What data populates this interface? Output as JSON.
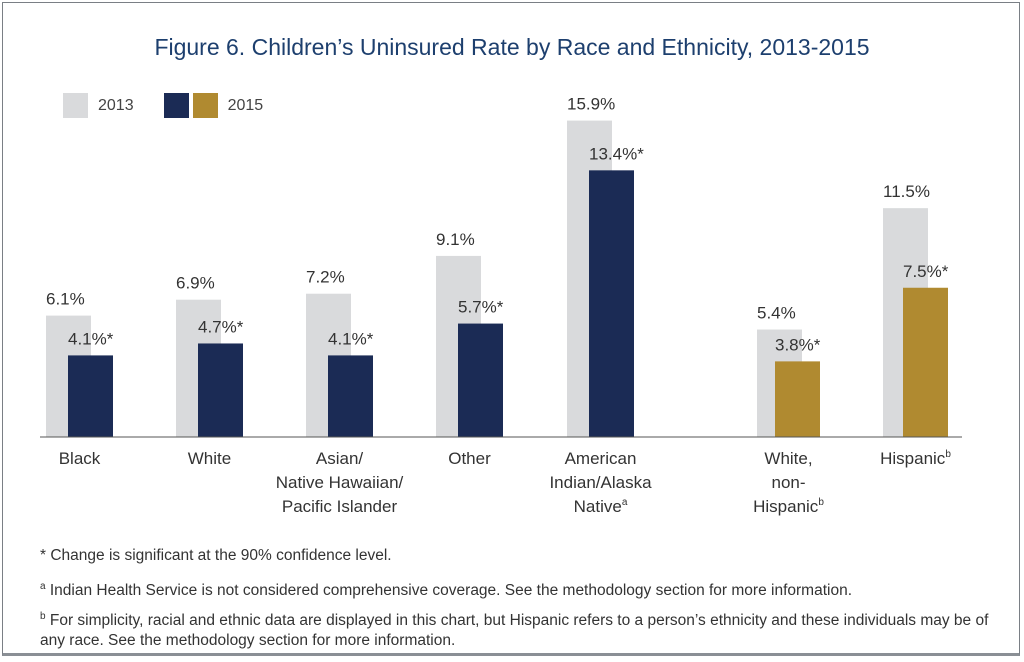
{
  "chart_data": {
    "type": "bar",
    "title": "Figure 6. Children’s Uninsured Rate by Race and Ethnicity, 2013-2015",
    "categories": [
      {
        "label": [
          "Black"
        ],
        "sup": ""
      },
      {
        "label": [
          "White"
        ],
        "sup": ""
      },
      {
        "label": [
          "Asian/",
          "Native Hawaiian/",
          "Pacific Islander"
        ],
        "sup": ""
      },
      {
        "label": [
          "Other"
        ],
        "sup": ""
      },
      {
        "label": [
          "American",
          "Indian/Alaska",
          "Native"
        ],
        "sup": "a"
      },
      {
        "label": [
          "White,",
          "non-",
          "Hispanic"
        ],
        "sup": "b"
      },
      {
        "label": [
          "Hispanic"
        ],
        "sup": "b"
      }
    ],
    "series": [
      {
        "name": "2013",
        "values": [
          6.1,
          6.9,
          7.2,
          9.1,
          15.9,
          5.4,
          11.5
        ],
        "labels": [
          "6.1%",
          "6.9%",
          "7.2%",
          "9.1%",
          "15.9%",
          "5.4%",
          "11.5%"
        ]
      },
      {
        "name": "2015",
        "values": [
          4.1,
          4.7,
          4.1,
          5.7,
          13.4,
          3.8,
          7.5
        ],
        "labels": [
          "4.1%*",
          "4.7%*",
          "4.1%*",
          "5.7%*",
          "13.4%*",
          "3.8%*",
          "7.5%*"
        ]
      }
    ],
    "colors": {
      "2013": "#d9dadc",
      "2015_race": "#1b2b55",
      "2015_ethnicity": "#b08a30",
      "title": "#1d3f6e"
    },
    "ylim": [
      0,
      16
    ],
    "grid": false,
    "legend": "top-left"
  },
  "footnotes": [
    {
      "mark": "*",
      "text": " Change is significant at the 90% confidence level."
    },
    {
      "mark": "a",
      "text": " Indian Health Service is not considered comprehensive coverage. See the methodology section for more information."
    },
    {
      "mark": "b",
      "text": " For simplicity, racial and ethnic data are displayed in this chart, but Hispanic refers to a person’s ethnicity and these individuals may be of any race. See the methodology section for more information."
    }
  ]
}
